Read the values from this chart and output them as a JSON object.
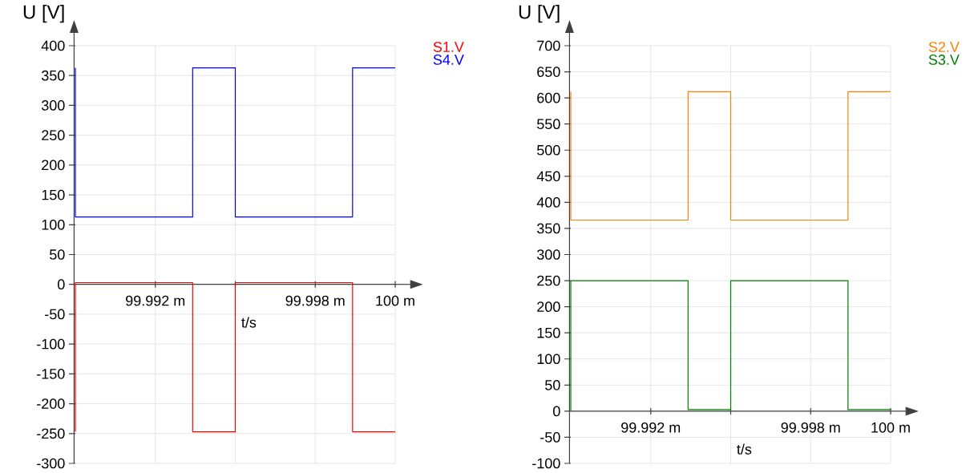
{
  "chart_data": [
    {
      "type": "step",
      "xlabel": "t/s",
      "ylabel": "U [V]",
      "xlim": [
        99.989,
        100.001
      ],
      "xticks": [
        {
          "value": 99.992,
          "label": "99.992 m"
        },
        {
          "value": 99.995,
          "label": null
        },
        {
          "value": 99.998,
          "label": "99.998 m"
        },
        {
          "value": 100.001,
          "label": "100 m"
        }
      ],
      "ylim": [
        -300,
        400
      ],
      "yticks": [
        -300,
        -250,
        -200,
        -150,
        -100,
        -50,
        0,
        50,
        100,
        150,
        200,
        250,
        300,
        350,
        400
      ],
      "grid": true,
      "legend": "top right",
      "marker": "none",
      "line_style": "solid",
      "series": [
        {
          "name": "S1.V",
          "color": "#ff0000",
          "x": [
            99.989,
            99.989,
            99.9934,
            99.995,
            99.9994,
            100.001
          ],
          "values": [
            -247,
            3,
            -247,
            3,
            -247,
            -247
          ]
        },
        {
          "name": "S4.V",
          "color": "#0000ff",
          "x": [
            99.989,
            99.989,
            99.9934,
            99.995,
            99.9994,
            100.001
          ],
          "values": [
            363,
            113,
            363,
            113,
            363,
            363
          ]
        }
      ]
    },
    {
      "type": "step",
      "xlabel": "t/s",
      "ylabel": "U [V]",
      "xlim": [
        99.989,
        100.001
      ],
      "xticks": [
        {
          "value": 99.992,
          "label": "99.992 m"
        },
        {
          "value": 99.995,
          "label": null
        },
        {
          "value": 99.998,
          "label": "99.998 m"
        },
        {
          "value": 100.001,
          "label": "100 m"
        }
      ],
      "ylim": [
        -100,
        700
      ],
      "yticks": [
        -100,
        -50,
        0,
        50,
        100,
        150,
        200,
        250,
        300,
        350,
        400,
        450,
        500,
        550,
        600,
        650,
        700
      ],
      "grid": true,
      "legend": "top right",
      "marker": "none",
      "line_style": "solid",
      "series": [
        {
          "name": "S2.V",
          "color": "#ff8000",
          "x": [
            99.989,
            99.989,
            99.9934,
            99.995,
            99.9994,
            100.001
          ],
          "values": [
            612,
            366,
            612,
            366,
            612,
            612
          ]
        },
        {
          "name": "S3.V",
          "color": "#008000",
          "x": [
            99.989,
            99.989,
            99.9934,
            99.995,
            99.9994,
            100.001
          ],
          "values": [
            0,
            250,
            3,
            250,
            3,
            3
          ]
        }
      ]
    }
  ]
}
